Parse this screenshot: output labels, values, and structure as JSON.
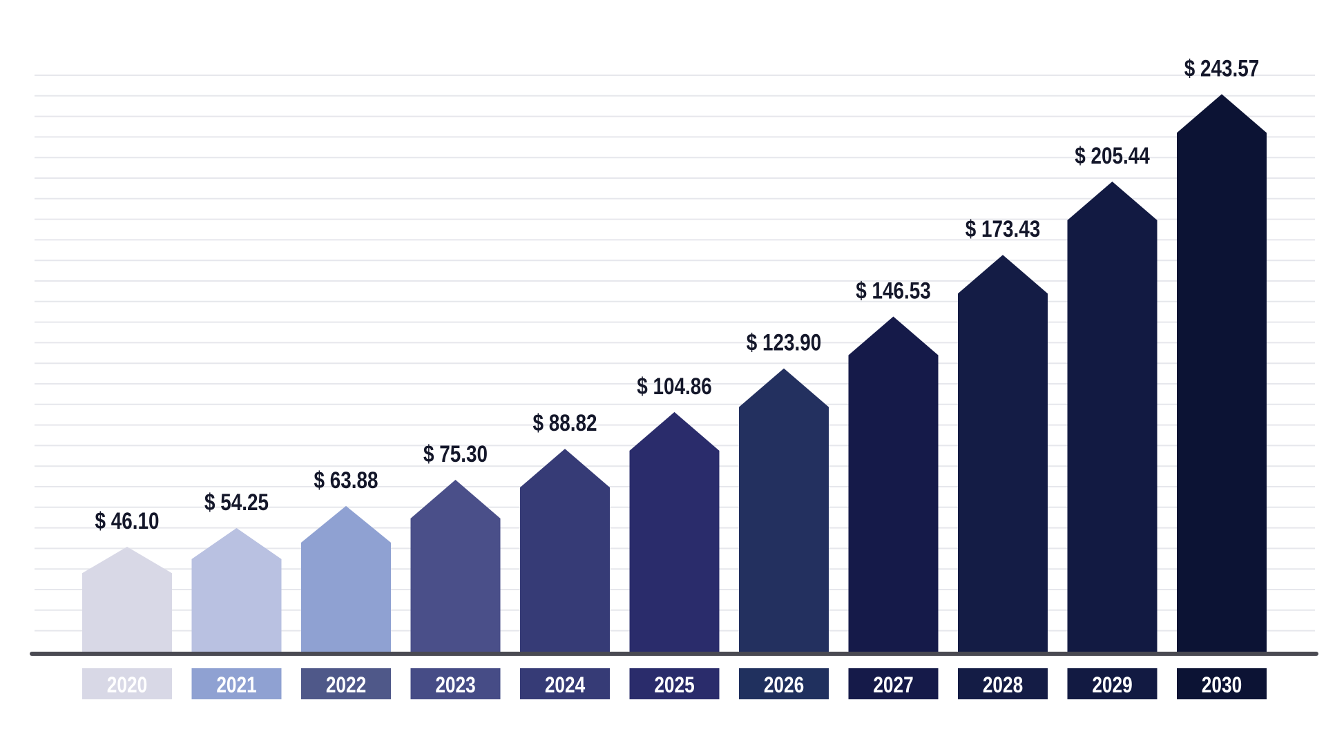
{
  "chart_data": {
    "type": "bar",
    "title": "",
    "xlabel": "",
    "ylabel": "",
    "categories": [
      "2020",
      "2021",
      "2022",
      "2023",
      "2024",
      "2025",
      "2026",
      "2027",
      "2028",
      "2029",
      "2030"
    ],
    "values": [
      46.1,
      54.25,
      63.88,
      75.3,
      88.82,
      104.86,
      123.9,
      146.53,
      173.43,
      205.44,
      243.57
    ],
    "value_labels": [
      "$ 46.10",
      "$ 54.25",
      "$ 63.88",
      "$ 75.30",
      "$ 88.82",
      "$ 104.86",
      "$ 123.90",
      "$ 146.53",
      "$ 173.43",
      "$ 205.44",
      "$ 243.57"
    ],
    "ylim": [
      0,
      260
    ],
    "grid": true,
    "bar_shape": "arrow",
    "bar_colors": [
      "#d8d8e6",
      "#b9c1e1",
      "#8fa1d2",
      "#4a4f89",
      "#363b76",
      "#2a2c6b",
      "#23305f",
      "#151a49",
      "#141c45",
      "#121a42",
      "#0c1334"
    ],
    "label_box_colors": [
      "#d8d8e6",
      "#8fa1d2",
      "#4f5889",
      "#464c86",
      "#363b76",
      "#2a2c6b",
      "#20305e",
      "#151a49",
      "#141c45",
      "#121a42",
      "#0c1334"
    ]
  }
}
